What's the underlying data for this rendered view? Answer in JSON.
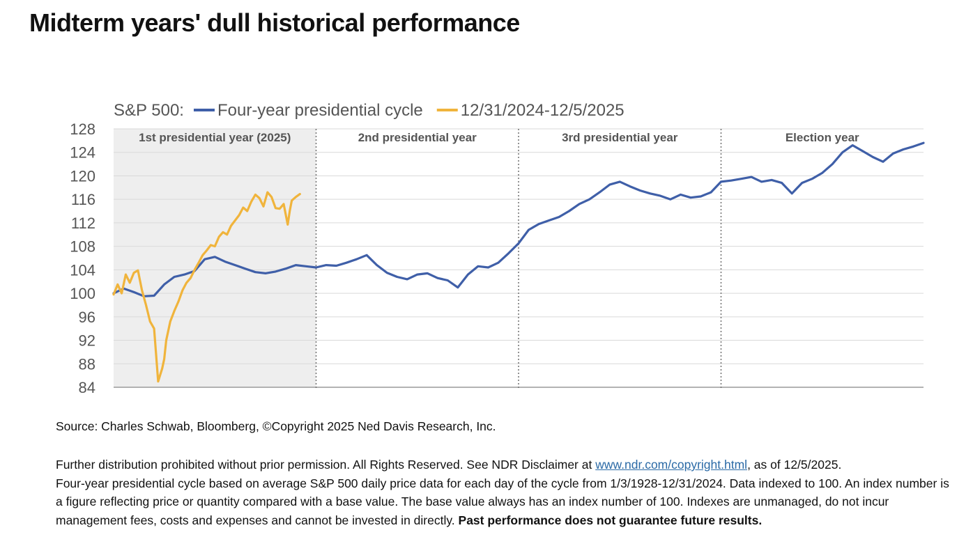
{
  "title": "Midterm years' dull historical performance",
  "source": "Source: Charles Schwab, Bloomberg, ©Copyright 2025 Ned Davis Research, Inc.",
  "notes": {
    "line1_before": "Further distribution prohibited without prior permission. All Rights Reserved. See NDR Disclaimer at ",
    "link_text": "www.ndr.com/copyright.html",
    "line1_after": ", as of 12/5/2025.",
    "body": "Four-year presidential cycle based on average S&P 500 daily price data for each day of the cycle from 1/3/1928-12/31/2024. Data indexed to 100. An index number is a figure reflecting price or quantity compared with a base value. The base value always has an index number of 100. Indexes are unmanaged, do not incur management fees, costs and expenses and cannot be invested in directly. ",
    "bold": "Past performance does not guarantee future results."
  },
  "colors": {
    "cycle": "#3f5fa8",
    "current": "#f0b43c",
    "shade": "#eeeeee",
    "grid": "#d9d9d9",
    "axis_text": "#555555"
  },
  "chart_data": {
    "type": "line",
    "legend_prefix": "S&P 500:",
    "legend_placement": "top-left",
    "ylim": [
      84,
      128
    ],
    "yticks": [
      84,
      88,
      92,
      96,
      100,
      104,
      108,
      112,
      116,
      120,
      124,
      128
    ],
    "xlim": [
      0,
      4
    ],
    "grid": true,
    "sections": [
      {
        "label": "1st presidential year (2025)",
        "start": 0,
        "end": 1,
        "shaded": true
      },
      {
        "label": "2nd presidential year",
        "start": 1,
        "end": 2,
        "shaded": false
      },
      {
        "label": "3rd presidential year",
        "start": 2,
        "end": 3,
        "shaded": false
      },
      {
        "label": "Election year",
        "start": 3,
        "end": 4,
        "shaded": false
      }
    ],
    "series": [
      {
        "name": "Four-year presidential cycle",
        "color_key": "cycle",
        "x": [
          0.0,
          0.05,
          0.1,
          0.15,
          0.2,
          0.25,
          0.3,
          0.35,
          0.4,
          0.45,
          0.5,
          0.55,
          0.6,
          0.65,
          0.7,
          0.75,
          0.8,
          0.85,
          0.9,
          0.95,
          1.0,
          1.05,
          1.1,
          1.15,
          1.2,
          1.25,
          1.3,
          1.35,
          1.4,
          1.45,
          1.5,
          1.55,
          1.6,
          1.65,
          1.7,
          1.75,
          1.8,
          1.85,
          1.9,
          1.95,
          2.0,
          2.05,
          2.1,
          2.15,
          2.2,
          2.25,
          2.3,
          2.35,
          2.4,
          2.45,
          2.5,
          2.55,
          2.6,
          2.65,
          2.7,
          2.75,
          2.8,
          2.85,
          2.9,
          2.95,
          3.0,
          3.05,
          3.1,
          3.15,
          3.2,
          3.25,
          3.3,
          3.35,
          3.4,
          3.45,
          3.5,
          3.55,
          3.6,
          3.65,
          3.7,
          3.75,
          3.8,
          3.85,
          3.9,
          3.95,
          4.0
        ],
        "values": [
          100.0,
          100.8,
          100.2,
          99.5,
          99.6,
          101.5,
          102.8,
          103.2,
          103.8,
          105.8,
          106.2,
          105.4,
          104.8,
          104.2,
          103.6,
          103.4,
          103.7,
          104.2,
          104.8,
          104.6,
          104.4,
          104.8,
          104.7,
          105.2,
          105.8,
          106.5,
          104.8,
          103.5,
          102.8,
          102.4,
          103.2,
          103.4,
          102.6,
          102.2,
          101.0,
          103.2,
          104.6,
          104.4,
          105.2,
          106.8,
          108.5,
          110.8,
          111.8,
          112.4,
          113.0,
          114.0,
          115.2,
          116.0,
          117.2,
          118.5,
          119.0,
          118.2,
          117.5,
          117.0,
          116.6,
          116.0,
          116.8,
          116.3,
          116.5,
          117.2,
          119.0,
          119.2,
          119.5,
          119.8,
          119.0,
          119.3,
          118.8,
          117.0,
          118.8,
          119.5,
          120.5,
          122.0,
          124.0,
          125.2,
          124.2,
          123.2,
          122.4,
          123.8,
          124.5,
          125.0,
          125.6
        ]
      },
      {
        "name": "12/31/2024-12/5/2025",
        "color_key": "current",
        "x": [
          0.0,
          0.02,
          0.04,
          0.06,
          0.08,
          0.1,
          0.12,
          0.14,
          0.16,
          0.18,
          0.2,
          0.21,
          0.22,
          0.24,
          0.25,
          0.26,
          0.28,
          0.3,
          0.32,
          0.34,
          0.36,
          0.38,
          0.4,
          0.42,
          0.44,
          0.46,
          0.48,
          0.5,
          0.52,
          0.54,
          0.56,
          0.58,
          0.6,
          0.62,
          0.64,
          0.66,
          0.68,
          0.7,
          0.72,
          0.74,
          0.76,
          0.78,
          0.8,
          0.82,
          0.84,
          0.86,
          0.87,
          0.88,
          0.9,
          0.92
        ],
        "values": [
          99.8,
          101.5,
          100.0,
          103.2,
          101.8,
          103.5,
          103.9,
          100.5,
          98.0,
          95.2,
          94.0,
          89.5,
          85.0,
          87.2,
          88.8,
          92.0,
          95.2,
          97.0,
          98.6,
          100.5,
          101.8,
          102.6,
          104.0,
          105.2,
          106.5,
          107.3,
          108.2,
          108.0,
          109.6,
          110.4,
          110.0,
          111.5,
          112.4,
          113.3,
          114.6,
          114.0,
          115.6,
          116.8,
          116.2,
          114.8,
          117.2,
          116.4,
          114.5,
          114.4,
          115.2,
          111.7,
          114.0,
          115.8,
          116.4,
          116.9
        ]
      }
    ]
  }
}
